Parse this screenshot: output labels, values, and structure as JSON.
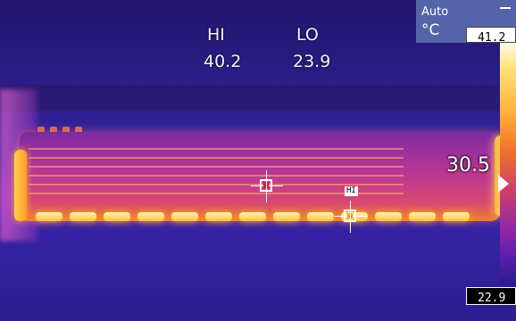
{
  "readouts": {
    "hi_label": "HI",
    "hi_value": "40.2",
    "lo_label": "LO",
    "lo_value": "23.9"
  },
  "scale": {
    "mode": "Auto",
    "unit": "°C",
    "top_value": "41.2",
    "bottom_value": "22.9",
    "center_value": "30.5"
  },
  "markers": {
    "hi_tag": "HI"
  },
  "colors": {
    "background": "#2a1a7a",
    "hot": "#ffe27a",
    "cold": "#2a1a8a"
  }
}
